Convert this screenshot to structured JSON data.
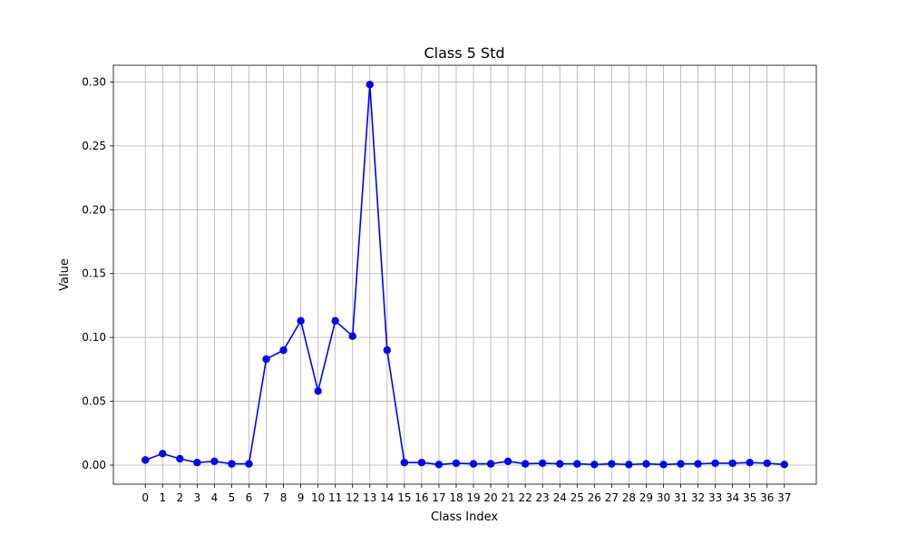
{
  "chart_data": {
    "type": "line",
    "title": "Class 5 Std",
    "xlabel": "Class Index",
    "ylabel": "Value",
    "x": [
      0,
      1,
      2,
      3,
      4,
      5,
      6,
      7,
      8,
      9,
      10,
      11,
      12,
      13,
      14,
      15,
      16,
      17,
      18,
      19,
      20,
      21,
      22,
      23,
      24,
      25,
      26,
      27,
      28,
      29,
      30,
      31,
      32,
      33,
      34,
      35,
      36,
      37
    ],
    "series": [
      {
        "values": [
          0.004,
          0.009,
          0.005,
          0.002,
          0.003,
          0.001,
          0.001,
          0.083,
          0.09,
          0.113,
          0.058,
          0.113,
          0.101,
          0.298,
          0.09,
          0.002,
          0.002,
          0.0005,
          0.0015,
          0.001,
          0.001,
          0.003,
          0.001,
          0.0015,
          0.001,
          0.001,
          0.0005,
          0.001,
          0.0005,
          0.001,
          0.0005,
          0.001,
          0.001,
          0.0015,
          0.0015,
          0.002,
          0.0015,
          0.0005
        ],
        "color": "#0000ff",
        "marker": "circle"
      }
    ],
    "xlim": [
      -1.85,
      38.85
    ],
    "ylim": [
      -0.0149,
      0.3131
    ],
    "yticks": [
      0.0,
      0.05,
      0.1,
      0.15,
      0.2,
      0.25,
      0.3
    ],
    "ytick_labels": [
      "0.00",
      "0.05",
      "0.10",
      "0.15",
      "0.20",
      "0.25",
      "0.30"
    ],
    "grid": true
  }
}
